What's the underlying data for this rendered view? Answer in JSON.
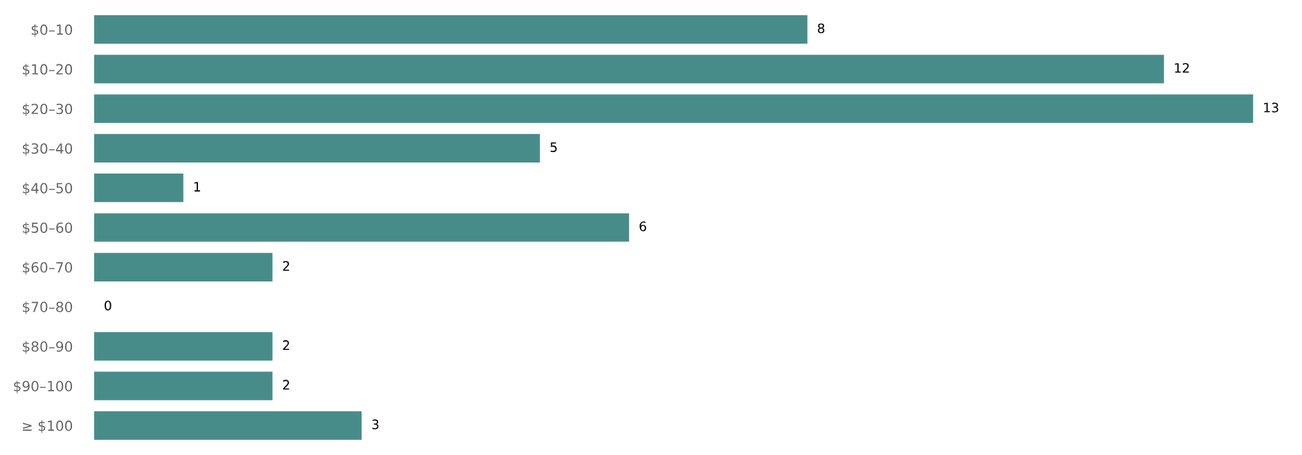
{
  "chart_data": {
    "type": "bar",
    "orientation": "horizontal",
    "categories": [
      "$0–10",
      "$10–20",
      "$20–30",
      "$30–40",
      "$40–50",
      "$50–60",
      "$60–70",
      "$70–80",
      "$80–90",
      "$90–100",
      "≥ $100"
    ],
    "values": [
      8,
      12,
      13,
      5,
      1,
      6,
      2,
      0,
      2,
      2,
      3
    ],
    "color": "#488c8a",
    "data_labels": true,
    "grid": false,
    "legend": false
  }
}
